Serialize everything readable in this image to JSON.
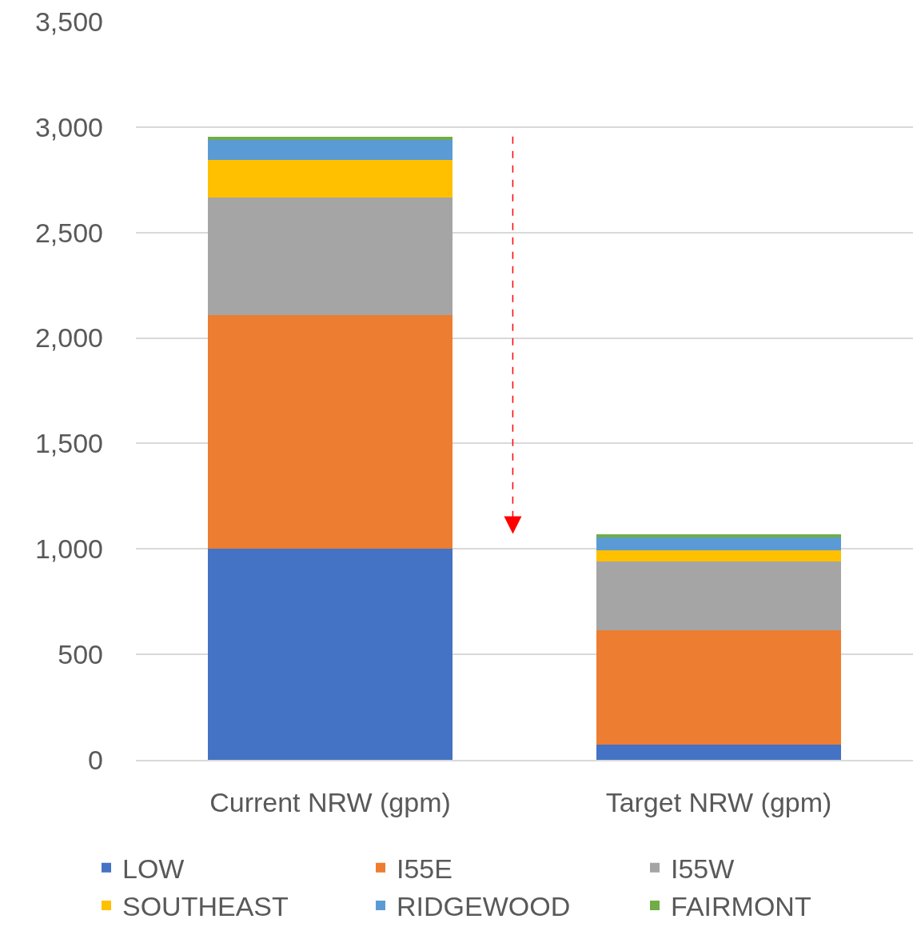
{
  "chart_data": {
    "type": "bar",
    "stacked": true,
    "categories": [
      "Current NRW (gpm)",
      "Target NRW (gpm)"
    ],
    "series": [
      {
        "name": "LOW",
        "color": "#4472c4",
        "values": [
          1000,
          72
        ]
      },
      {
        "name": "I55E",
        "color": "#ed7d31",
        "values": [
          1110,
          544
        ]
      },
      {
        "name": "I55W",
        "color": "#a5a5a5",
        "values": [
          555,
          324
        ]
      },
      {
        "name": "SOUTHEAST",
        "color": "#ffc000",
        "values": [
          180,
          55
        ]
      },
      {
        "name": "RIDGEWOOD",
        "color": "#5b9bd5",
        "values": [
          95,
          60
        ]
      },
      {
        "name": "FAIRMONT",
        "color": "#70ad47",
        "values": [
          15,
          16
        ]
      }
    ],
    "ylim": [
      0,
      3500
    ],
    "yticks": [
      {
        "value": 0,
        "label": "0"
      },
      {
        "value": 500,
        "label": "500"
      },
      {
        "value": 1000,
        "label": "1,000"
      },
      {
        "value": 1500,
        "label": "1,500"
      },
      {
        "value": 2000,
        "label": "2,000"
      },
      {
        "value": 2500,
        "label": "2,500"
      },
      {
        "value": 3000,
        "label": "3,000"
      },
      {
        "value": 3500,
        "label": "3,500"
      }
    ],
    "grid": "y",
    "legend": "bottom"
  }
}
